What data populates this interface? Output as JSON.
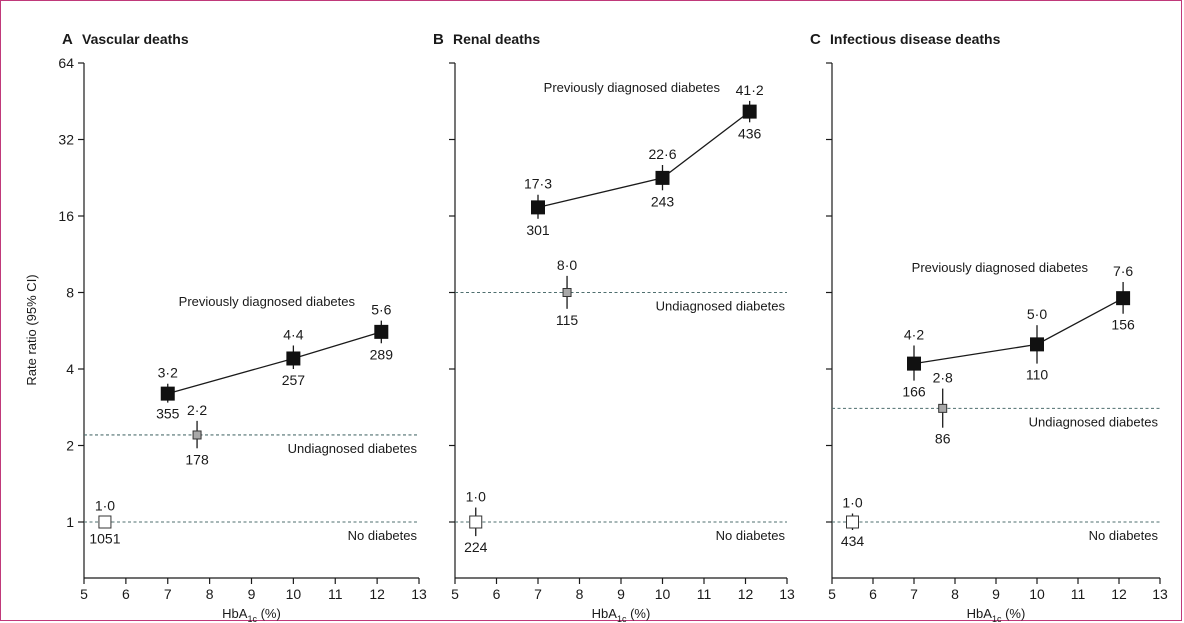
{
  "figure": {
    "y_axis_label": "Rate ratio (95% CI)",
    "x_axis_label_main": "HbA",
    "x_axis_label_sub": "1c",
    "x_axis_label_unit": " (%)"
  },
  "chart_data": [
    {
      "type": "scatter",
      "panel_letter": "A",
      "title": "Vascular deaths",
      "xlabel": "HbA1c (%)",
      "ylabel": "Rate ratio (95% CI)",
      "xlim": [
        5,
        13
      ],
      "ylim": [
        0.5,
        64
      ],
      "y_scale": "log2",
      "x_ticks": [
        5,
        6,
        7,
        8,
        9,
        10,
        11,
        12,
        13
      ],
      "y_ticks": [
        1,
        2,
        4,
        8,
        16,
        32,
        64
      ],
      "y_tick_labels": [
        "1",
        "2",
        "4",
        "8",
        "16",
        "32",
        "64"
      ],
      "reference_lines": [
        {
          "label": "Undiagnosed diabetes",
          "y": 2.2
        },
        {
          "label": "No diabetes",
          "y": 1.0
        }
      ],
      "series": [
        {
          "name": "Previously diagnosed diabetes",
          "marker": "filled-square",
          "connected": true,
          "points": [
            {
              "x": 7.0,
              "y": 3.2,
              "lo": 2.95,
              "hi": 3.5,
              "label": "3·2",
              "n": "355"
            },
            {
              "x": 10.0,
              "y": 4.4,
              "lo": 4.0,
              "hi": 4.95,
              "label": "4·4",
              "n": "257"
            },
            {
              "x": 12.1,
              "y": 5.6,
              "lo": 5.05,
              "hi": 6.2,
              "label": "5·6",
              "n": "289"
            }
          ]
        },
        {
          "name": "Undiagnosed diabetes",
          "marker": "grey-square",
          "connected": false,
          "points": [
            {
              "x": 7.7,
              "y": 2.2,
              "lo": 1.95,
              "hi": 2.5,
              "label": "2·2",
              "n": "178"
            }
          ]
        },
        {
          "name": "No diabetes",
          "marker": "open-square",
          "connected": false,
          "points": [
            {
              "x": 5.5,
              "y": 1.0,
              "lo": 0.95,
              "hi": 1.05,
              "label": "1·0",
              "n": "1051"
            }
          ]
        }
      ]
    },
    {
      "type": "scatter",
      "panel_letter": "B",
      "title": "Renal deaths",
      "xlabel": "HbA1c (%)",
      "xlim": [
        5,
        13
      ],
      "ylim": [
        0.5,
        64
      ],
      "y_scale": "log2",
      "x_ticks": [
        5,
        6,
        7,
        8,
        9,
        10,
        11,
        12,
        13
      ],
      "y_ticks": [
        1,
        2,
        4,
        8,
        16,
        32,
        64
      ],
      "reference_lines": [
        {
          "label": "Undiagnosed diabetes",
          "y": 8.0
        },
        {
          "label": "No diabetes",
          "y": 1.0
        }
      ],
      "series": [
        {
          "name": "Previously diagnosed diabetes",
          "marker": "filled-square",
          "connected": true,
          "points": [
            {
              "x": 7.0,
              "y": 17.3,
              "lo": 15.6,
              "hi": 19.4,
              "label": "17·3",
              "n": "301"
            },
            {
              "x": 10.0,
              "y": 22.6,
              "lo": 20.2,
              "hi": 25.4,
              "label": "22·6",
              "n": "243"
            },
            {
              "x": 12.1,
              "y": 41.2,
              "lo": 37.4,
              "hi": 45.4,
              "label": "41·2",
              "n": "436"
            }
          ]
        },
        {
          "name": "Undiagnosed diabetes",
          "marker": "grey-square",
          "connected": false,
          "points": [
            {
              "x": 7.7,
              "y": 8.0,
              "lo": 6.9,
              "hi": 9.3,
              "label": "8·0",
              "n": "115"
            }
          ]
        },
        {
          "name": "No diabetes",
          "marker": "open-square",
          "connected": false,
          "points": [
            {
              "x": 5.5,
              "y": 1.0,
              "lo": 0.88,
              "hi": 1.14,
              "label": "1·0",
              "n": "224"
            }
          ]
        }
      ]
    },
    {
      "type": "scatter",
      "panel_letter": "C",
      "title": "Infectious disease deaths",
      "xlabel": "HbA1c (%)",
      "xlim": [
        5,
        13
      ],
      "ylim": [
        0.5,
        64
      ],
      "y_scale": "log2",
      "x_ticks": [
        5,
        6,
        7,
        8,
        9,
        10,
        11,
        12,
        13
      ],
      "y_ticks": [
        1,
        2,
        4,
        8,
        16,
        32,
        64
      ],
      "reference_lines": [
        {
          "label": "Undiagnosed diabetes",
          "y": 2.8
        },
        {
          "label": "No diabetes",
          "y": 1.0
        }
      ],
      "series": [
        {
          "name": "Previously diagnosed diabetes",
          "marker": "filled-square",
          "connected": true,
          "points": [
            {
              "x": 7.0,
              "y": 4.2,
              "lo": 3.6,
              "hi": 4.95,
              "label": "4·2",
              "n": "166"
            },
            {
              "x": 10.0,
              "y": 5.0,
              "lo": 4.2,
              "hi": 5.95,
              "label": "5·0",
              "n": "110"
            },
            {
              "x": 12.1,
              "y": 7.6,
              "lo": 6.6,
              "hi": 8.8,
              "label": "7·6",
              "n": "156"
            }
          ]
        },
        {
          "name": "Undiagnosed diabetes",
          "marker": "grey-square",
          "connected": false,
          "points": [
            {
              "x": 7.7,
              "y": 2.8,
              "lo": 2.35,
              "hi": 3.35,
              "label": "2·8",
              "n": "86"
            }
          ]
        },
        {
          "name": "No diabetes",
          "marker": "open-square",
          "connected": false,
          "points": [
            {
              "x": 5.5,
              "y": 1.0,
              "lo": 0.93,
              "hi": 1.08,
              "label": "1·0",
              "n": "434"
            }
          ]
        }
      ]
    }
  ]
}
